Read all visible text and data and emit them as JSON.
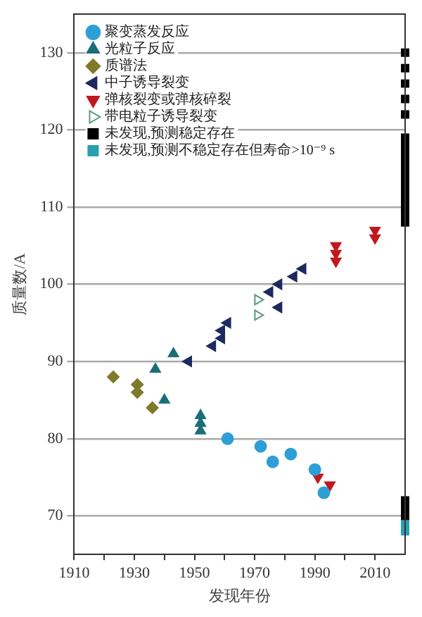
{
  "chart_data": {
    "type": "scatter",
    "xlabel": "发现年份",
    "ylabel": "质量数/A",
    "xlim": [
      1910,
      2020
    ],
    "ylim": [
      65,
      135
    ],
    "xticks": [
      1910,
      {
        "value": 1920,
        "label": null
      },
      1930,
      {
        "value": 1940,
        "label": null
      },
      1950,
      {
        "value": 1960,
        "label": null
      },
      1970,
      {
        "value": 1980,
        "label": null
      },
      1990,
      {
        "value": 2000,
        "label": null
      },
      2010
    ],
    "yticks": [
      70,
      80,
      90,
      100,
      110,
      120,
      130
    ],
    "grid": "y",
    "legend": "top left",
    "series": [
      {
        "name": "聚变蒸发反应",
        "color": "#2e9fd6",
        "marker": "circle",
        "x": [
          1961,
          1972,
          1976,
          1982,
          1990,
          1993
        ],
        "values": [
          80,
          79,
          77,
          78,
          76,
          73
        ]
      },
      {
        "name": "光粒子反应",
        "color": "#1a6e78",
        "marker": "triangle",
        "x": [
          1937,
          1940,
          1943,
          1952,
          1952,
          1952
        ],
        "values": [
          89,
          85,
          91,
          83,
          82,
          81
        ]
      },
      {
        "name": "质谱法",
        "color": "#7f7a2a",
        "marker": "diamond",
        "x": [
          1923,
          1931,
          1931,
          1936
        ],
        "values": [
          88,
          87,
          86,
          84
        ]
      },
      {
        "name": "中子诱导裂变",
        "color": "#1d2a60",
        "marker": "triangle-left",
        "x": [
          1948,
          1956,
          1959,
          1959,
          1961,
          1975,
          1978,
          1978,
          1983,
          1986
        ],
        "values": [
          90,
          92,
          93,
          94,
          95,
          99,
          97,
          100,
          101,
          102
        ]
      },
      {
        "name": "弹核裂变或弹核碎裂",
        "color": "#c0181e",
        "marker": "triangle-down",
        "x": [
          1991,
          1995,
          1997,
          1997,
          1997,
          2010,
          2010
        ],
        "values": [
          75,
          74,
          103,
          104,
          105,
          106,
          107
        ]
      },
      {
        "name": "带电粒子诱导裂变",
        "color": "#5a9a78",
        "marker": "triangle-right-open",
        "x": [
          1971,
          1971
        ],
        "values": [
          96,
          98
        ]
      },
      {
        "name": "未发现,预测稳定存在",
        "color": "#000000",
        "marker": "square",
        "x": [
          2020,
          2020,
          2020,
          2020,
          2020,
          2020,
          2020,
          2020,
          2020,
          2020,
          2020,
          2020,
          2020,
          2020,
          2020,
          2020,
          2020,
          2020,
          2020,
          2020
        ],
        "values": [
          70,
          71,
          72,
          108,
          109,
          110,
          111,
          112,
          113,
          114,
          115,
          116,
          117,
          118,
          119,
          122,
          124,
          126,
          128,
          130
        ]
      },
      {
        "name": "未发现,预测不稳定存在但寿命>10⁻⁹ s",
        "color": "#2a9fb0",
        "marker": "square",
        "x": [
          2020,
          2020
        ],
        "values": [
          68,
          69
        ]
      }
    ]
  }
}
